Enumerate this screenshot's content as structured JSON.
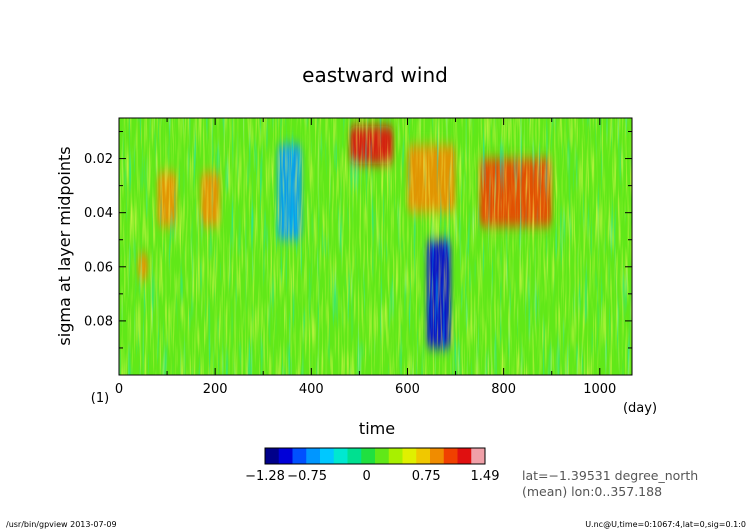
{
  "chart_data": {
    "type": "heatmap",
    "title": "eastward wind",
    "xlabel": "time",
    "ylabel": "sigma at layer midpoints",
    "x_unit": "(day)",
    "y_unit": "(1)",
    "xlim": [
      0,
      1067
    ],
    "ylim": [
      0.1,
      0.005
    ],
    "x_ticks": [
      0,
      200,
      400,
      600,
      800,
      1000
    ],
    "y_ticks": [
      0.02,
      0.04,
      0.06,
      0.08
    ],
    "x_tick_labels": [
      "0",
      "200",
      "400",
      "600",
      "800",
      "1000"
    ],
    "y_tick_labels": [
      "0.02",
      "0.04",
      "0.06",
      "0.08"
    ],
    "colorbar": {
      "min": -1.28,
      "max": 1.49,
      "tick_labels": [
        "−1.28",
        "−0.75",
        "0",
        "0.75",
        "1.49"
      ],
      "tick_values": [
        -1.28,
        -0.75,
        0,
        0.75,
        1.49
      ],
      "colors": [
        "#00008a",
        "#0000d8",
        "#0050ff",
        "#0096ff",
        "#00c8ff",
        "#00e8d0",
        "#00e090",
        "#20e040",
        "#60e818",
        "#a8f000",
        "#e0f000",
        "#f0c800",
        "#f08c00",
        "#f04000",
        "#e01010",
        "#f0a0a8"
      ]
    },
    "annotations": [
      "lat=−1.39531 degree_north",
      "(mean) lon:0..357.188"
    ],
    "features": [
      {
        "x": [
          480,
          570
        ],
        "y": [
          0.008,
          0.022
        ],
        "value": 1.2
      },
      {
        "x": [
          750,
          900
        ],
        "y": [
          0.02,
          0.045
        ],
        "value": 1.0
      },
      {
        "x": [
          600,
          700
        ],
        "y": [
          0.015,
          0.04
        ],
        "value": 0.9
      },
      {
        "x": [
          80,
          120
        ],
        "y": [
          0.025,
          0.045
        ],
        "value": 0.8
      },
      {
        "x": [
          170,
          210
        ],
        "y": [
          0.025,
          0.045
        ],
        "value": 0.8
      },
      {
        "x": [
          40,
          60
        ],
        "y": [
          0.055,
          0.065
        ],
        "value": 0.8
      },
      {
        "x": [
          640,
          690
        ],
        "y": [
          0.05,
          0.09
        ],
        "value": -1.0
      },
      {
        "x": [
          330,
          380
        ],
        "y": [
          0.015,
          0.05
        ],
        "value": -0.6
      }
    ]
  },
  "footer": {
    "left": "/usr/bin/gpview  2013-07-09",
    "right": "U.nc@U,time=0:1067:4,lat=0,sig=0.1:0"
  }
}
